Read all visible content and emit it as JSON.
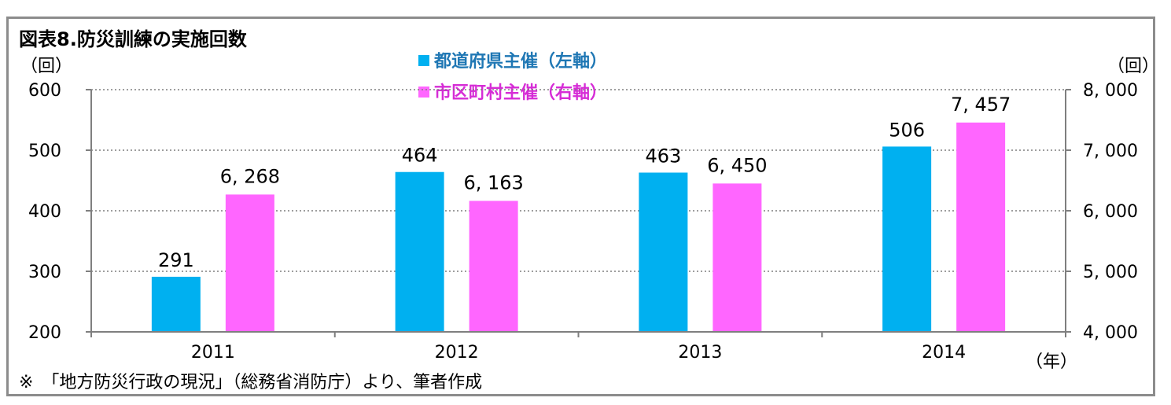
{
  "title": "図表8.防災訓練の実施回数",
  "left_unit": "（回）",
  "right_unit": "（回）",
  "x_unit": "（年）",
  "source_note": "※　「地方防災行政の現況」（総務省消防庁）より、筆者作成",
  "colors": {
    "prefecture": "#00b0f0",
    "municipality": "#ff66ff",
    "axis": "#7f7f7f",
    "grid": "#7f7f7f",
    "legend_prefecture_text": "#1f77b4",
    "legend_municipality_text": "#d62cd6"
  },
  "chart_data": {
    "type": "bar",
    "title": "図表8.防災訓練の実施回数",
    "categories": [
      "2011",
      "2012",
      "2013",
      "2014"
    ],
    "series": [
      {
        "name": "都道府県主催（左軸）",
        "axis": "left",
        "values": [
          291,
          464,
          463,
          506
        ],
        "labels": [
          "291",
          "464",
          "463",
          "506"
        ]
      },
      {
        "name": "市区町村主催（右軸）",
        "axis": "right",
        "values": [
          6268,
          6163,
          6450,
          7457
        ],
        "labels": [
          "6, 268",
          "6, 163",
          "6, 450",
          "7, 457"
        ]
      }
    ],
    "ylim_left": [
      200,
      600
    ],
    "yticks_left": [
      "600",
      "500",
      "400",
      "300",
      "200"
    ],
    "ylim_right": [
      4000,
      8000
    ],
    "yticks_right": [
      "8, 000",
      "7, 000",
      "6, 000",
      "5, 000",
      "4, 000"
    ],
    "grid": true,
    "legend_position": "top-center"
  }
}
